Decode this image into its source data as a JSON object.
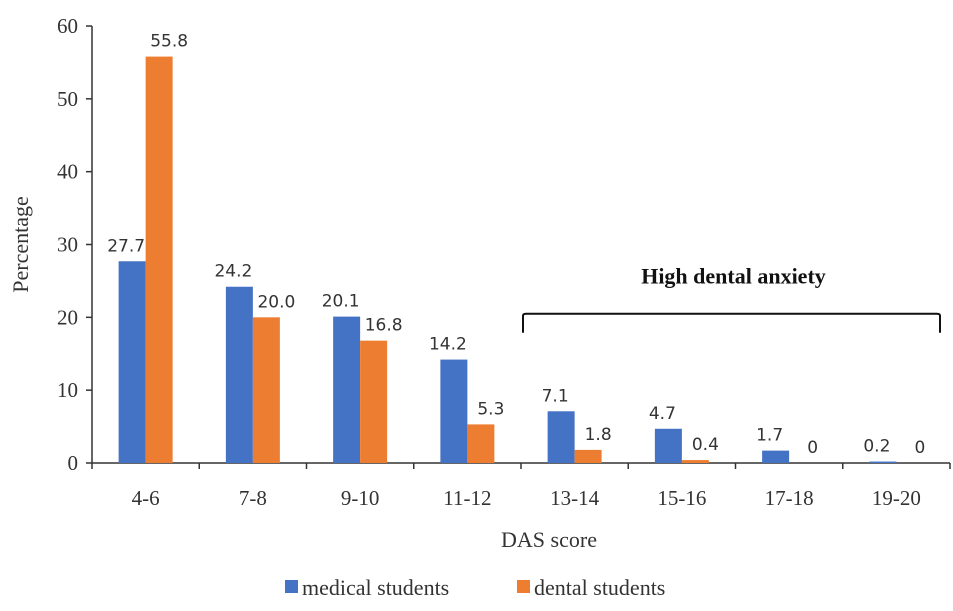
{
  "chart_data": {
    "type": "bar",
    "categories": [
      "4-6",
      "7-8",
      "9-10",
      "11-12",
      "13-14",
      "15-16",
      "17-18",
      "19-20"
    ],
    "series": [
      {
        "name": "medical students",
        "values": [
          27.7,
          24.2,
          20.1,
          14.2,
          7.1,
          4.7,
          1.7,
          0.2
        ],
        "labels": [
          "27.7",
          "24.2",
          "20.1",
          "14.2",
          "7.1",
          "4.7",
          "1.7",
          "0.2"
        ],
        "color": "#4472C4"
      },
      {
        "name": "dental students",
        "values": [
          55.8,
          20.0,
          16.8,
          5.3,
          1.8,
          0.4,
          0,
          0
        ],
        "labels": [
          "55.8",
          "20.0",
          "16.8",
          "5.3",
          "1.8",
          "0.4",
          "0",
          "0"
        ],
        "color": "#ED7D31"
      }
    ],
    "xlabel": "DAS score",
    "ylabel": "Percentage",
    "ylim": [
      0,
      60
    ],
    "yticks": [
      "0",
      "10",
      "20",
      "30",
      "40",
      "50",
      "60"
    ],
    "grid": false,
    "legend_position": "bottom",
    "annotation": {
      "text": "High dental anxiety",
      "spans_categories": [
        "13-14",
        "19-20"
      ]
    }
  }
}
